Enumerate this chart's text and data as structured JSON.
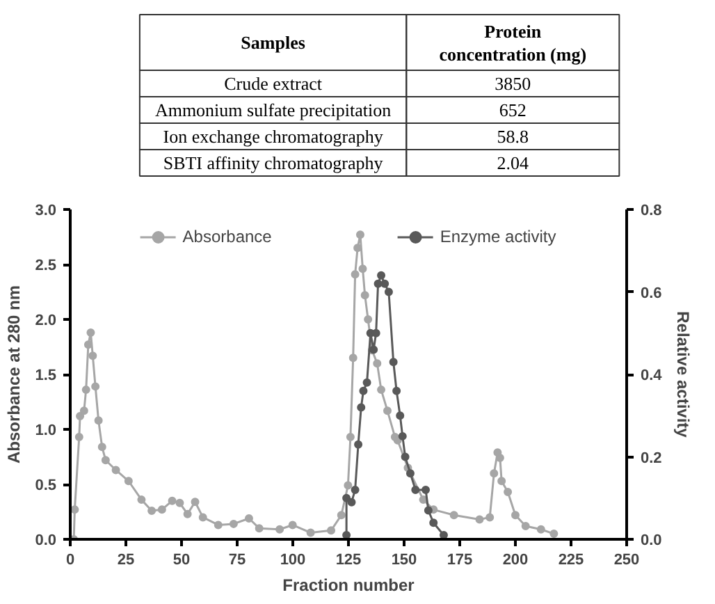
{
  "chart_data": [
    {
      "type": "other",
      "annotations": [
        "Samples",
        "Protein concentration (mg)",
        "Crude extract",
        "3850",
        "Ammonium sulfate precipitation",
        "652",
        "Ion exchange chromatography",
        "58.8",
        "SBTI affinity chromatography",
        "2.04"
      ]
    },
    {
      "type": "line",
      "xlabel": "Fraction number",
      "ylabel": "Absorbance at 280 nm",
      "y2label": "Relative activity",
      "xlim": [
        0,
        250
      ],
      "xticks": [
        0,
        25,
        50,
        75,
        100,
        125,
        150,
        175,
        200,
        225,
        250
      ],
      "ylim": [
        0,
        3.0
      ],
      "yticks": [
        {
          "value": 0,
          "label": "0.0"
        },
        0.5,
        {
          "value": 1,
          "label": "1.0"
        },
        1.5,
        {
          "value": 2,
          "label": "2.0"
        },
        2.5,
        {
          "value": 3,
          "label": "3.0"
        }
      ],
      "y2lim": [
        0,
        0.8
      ],
      "y2ticks": [
        {
          "value": 0,
          "label": "0.0"
        },
        0.2,
        0.4,
        0.6,
        0.8
      ],
      "grid": false,
      "legend": "top",
      "marker": "circle",
      "line_style": "solid",
      "series": [
        {
          "name": "Absorbance",
          "color": "#a6a6a6",
          "x": [
            1.6,
            2,
            4,
            4.4,
            6.2,
            7.1,
            8.1,
            9.2,
            10.1,
            11.3,
            12.7,
            14.3,
            15.9,
            20.5,
            26.2,
            32,
            36.6,
            41.2,
            45.8,
            49.2,
            52.7,
            56.1,
            59.6,
            66.5,
            73.4,
            80.3,
            84.9,
            94.1,
            99.9,
            108,
            117.2,
            121.8,
            124.8,
            125.9,
            127.1,
            128,
            129.1,
            130.3,
            131.4,
            132.4,
            133.8,
            135.6,
            137.9,
            139.7,
            142.5,
            145.9,
            147.1,
            151.7,
            158.6,
            163.2,
            172.4,
            183.9,
            188.5,
            190.4,
            192,
            193.1,
            193.8,
            196.6,
            200,
            204.6,
            211.5,
            217.3
          ],
          "values": [
            0,
            0.27,
            0.93,
            1.12,
            1.17,
            1.36,
            1.77,
            1.88,
            1.67,
            1.39,
            1.08,
            0.84,
            0.72,
            0.63,
            0.53,
            0.36,
            0.26,
            0.27,
            0.35,
            0.33,
            0.23,
            0.34,
            0.2,
            0.13,
            0.14,
            0.19,
            0.1,
            0.09,
            0.13,
            0.06,
            0.08,
            0.22,
            0.49,
            0.93,
            1.65,
            2.41,
            2.65,
            2.77,
            2.46,
            2.22,
            2.0,
            1.72,
            1.6,
            1.36,
            1.17,
            0.93,
            0.9,
            0.65,
            0.36,
            0.27,
            0.22,
            0.18,
            0.2,
            0.6,
            0.79,
            0.74,
            0.53,
            0.43,
            0.22,
            0.12,
            0.09,
            0.05
          ]
        },
        {
          "name": "Enzyme activity",
          "color": "#595959",
          "axis": "y2",
          "x": [
            124.1,
            124.1,
            126.4,
            128,
            129.4,
            130.7,
            131.7,
            133.3,
            134.9,
            136.3,
            137.4,
            138.3,
            139.7,
            141.3,
            143.1,
            145.2,
            146.6,
            148.2,
            149.3,
            150.5,
            152.8,
            155.1,
            159.7,
            160.9,
            163.2,
            167.8
          ],
          "values": [
            0.01,
            0.1,
            0.09,
            0.12,
            0.23,
            0.32,
            0.36,
            0.38,
            0.5,
            0.46,
            0.5,
            0.62,
            0.64,
            0.62,
            0.6,
            0.43,
            0.36,
            0.3,
            0.25,
            0.2,
            0.16,
            0.12,
            0.12,
            0.07,
            0.04,
            0.01
          ]
        }
      ]
    }
  ]
}
